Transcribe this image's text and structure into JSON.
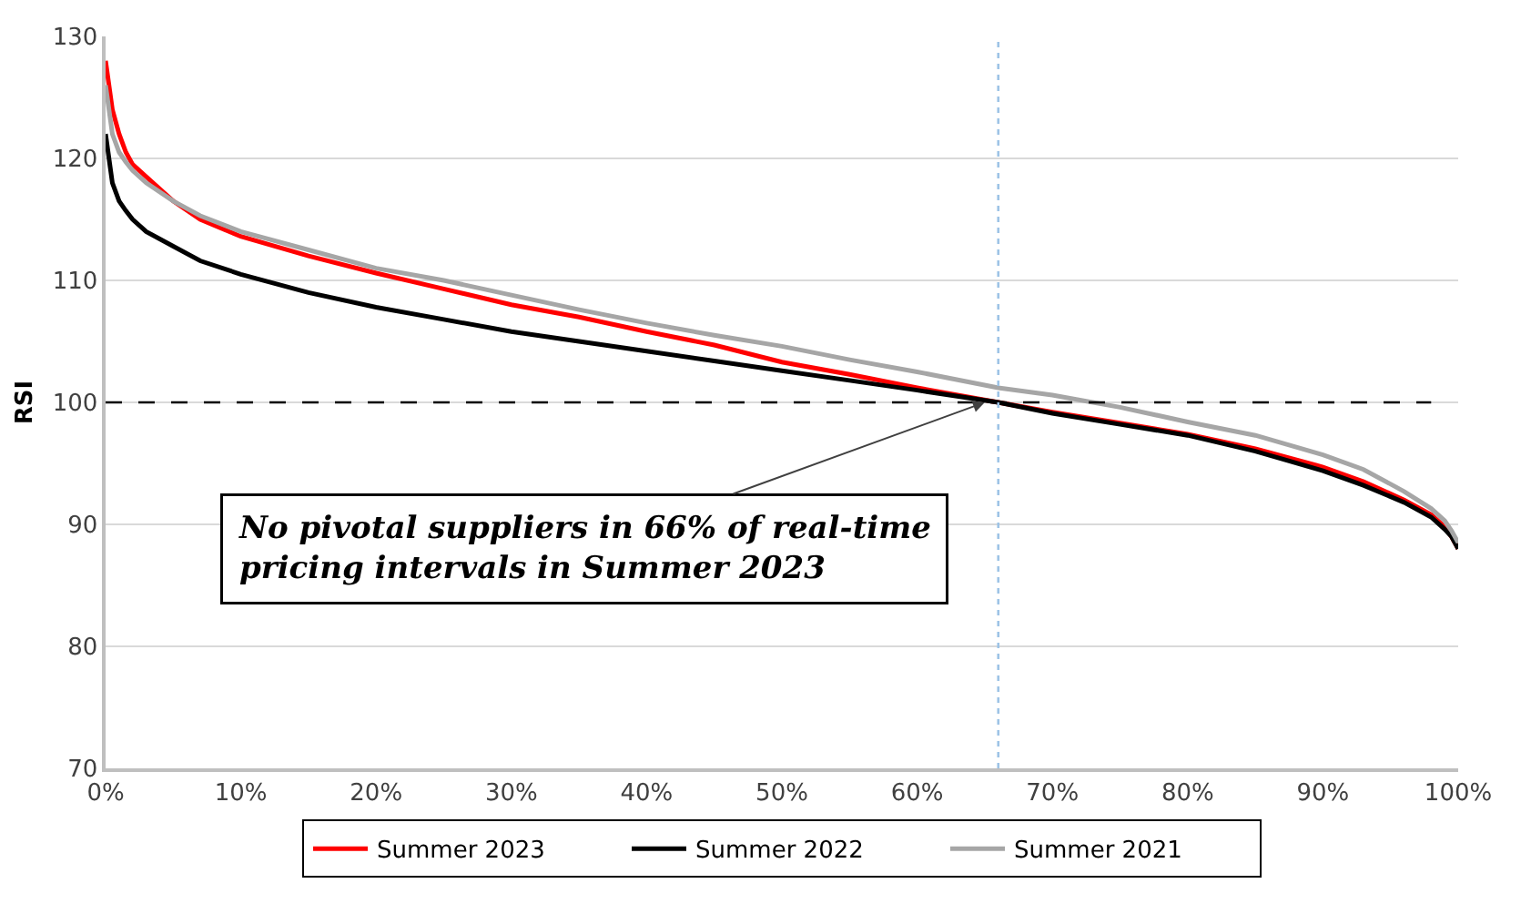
{
  "chart_data": {
    "type": "line",
    "ylabel": "RSI",
    "x": [
      0,
      0.5,
      1,
      1.5,
      2,
      3,
      5,
      7,
      10,
      15,
      20,
      25,
      30,
      35,
      40,
      45,
      50,
      55,
      60,
      66,
      70,
      75,
      80,
      85,
      90,
      93,
      96,
      98,
      99,
      99.5,
      100
    ],
    "series": [
      {
        "name": "Summer 2023",
        "color": "#ff0000",
        "values": [
          128,
          124,
          122,
          120.5,
          119.5,
          118.5,
          116.5,
          115,
          113.6,
          112,
          110.6,
          109.3,
          108,
          107,
          105.8,
          104.7,
          103.3,
          102.3,
          101.2,
          100,
          99.2,
          98.3,
          97.4,
          96.2,
          94.7,
          93.5,
          92,
          90.8,
          89.8,
          89,
          88
        ]
      },
      {
        "name": "Summer 2022",
        "color": "#000000",
        "values": [
          122,
          118,
          116.5,
          115.7,
          115,
          114,
          112.8,
          111.6,
          110.5,
          109,
          107.8,
          106.8,
          105.8,
          105,
          104.2,
          103.4,
          102.6,
          101.8,
          101,
          100,
          99.1,
          98.2,
          97.3,
          96,
          94.4,
          93.2,
          91.8,
          90.6,
          89.6,
          89,
          88
        ]
      },
      {
        "name": "Summer 2021",
        "color": "#a6a6a6",
        "values": [
          126,
          122,
          120.5,
          119.7,
          119,
          118,
          116.5,
          115.3,
          114,
          112.5,
          111,
          110,
          108.8,
          107.6,
          106.5,
          105.5,
          104.6,
          103.5,
          102.5,
          101.2,
          100.6,
          99.6,
          98.4,
          97.3,
          95.7,
          94.5,
          92.7,
          91.3,
          90.3,
          89.5,
          88.5
        ]
      }
    ],
    "xlim": [
      0,
      100
    ],
    "xticks": [
      {
        "value": 0,
        "label": "0%"
      },
      {
        "value": 10,
        "label": "10%"
      },
      {
        "value": 20,
        "label": "20%"
      },
      {
        "value": 30,
        "label": "30%"
      },
      {
        "value": 40,
        "label": "40%"
      },
      {
        "value": 50,
        "label": "50%"
      },
      {
        "value": 60,
        "label": "60%"
      },
      {
        "value": 70,
        "label": "70%"
      },
      {
        "value": 80,
        "label": "80%"
      },
      {
        "value": 90,
        "label": "90%"
      },
      {
        "value": 100,
        "label": "100%"
      }
    ],
    "ylim": [
      70,
      130
    ],
    "yticks": [
      70,
      80,
      90,
      100,
      110,
      120,
      130
    ],
    "grid": "y",
    "legend": "bottom",
    "marker": "none",
    "line_style": "solid",
    "ref_lines": [
      {
        "axis": "y",
        "value": 100,
        "color": "#000000",
        "line_style": "dashed"
      },
      {
        "axis": "x",
        "value": 66,
        "color": "#9dc3e6",
        "line_style": "dotted"
      }
    ],
    "annotations": [
      {
        "text": "No pivotal suppliers in 66% of real-time pricing intervals in Summer 2023",
        "x": 65,
        "y": 100
      }
    ]
  }
}
